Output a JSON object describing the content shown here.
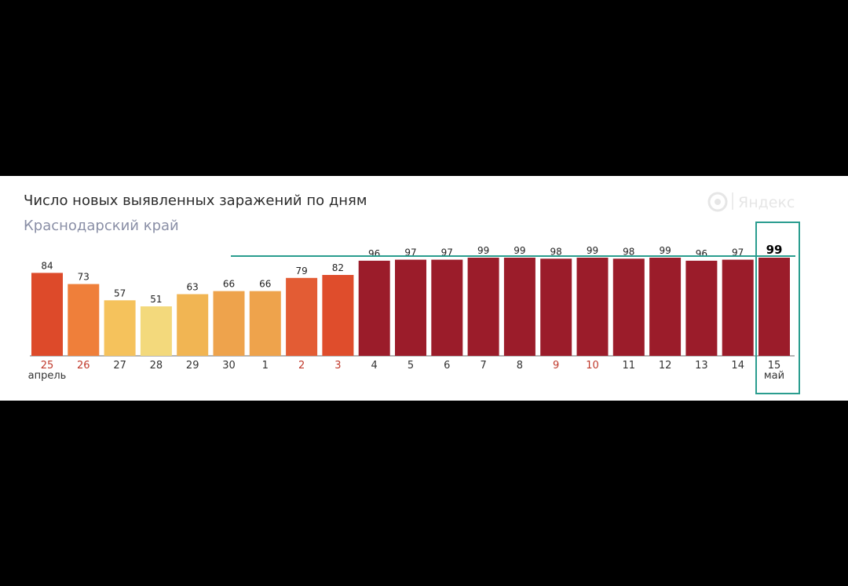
{
  "logo": {
    "text": "Яндекс"
  },
  "chart_data": {
    "type": "bar",
    "title": "Число новых выявленных заражений по дням",
    "subtitle": "Краснодарский край",
    "categories": [
      "25",
      "26",
      "27",
      "28",
      "29",
      "30",
      "1",
      "2",
      "3",
      "4",
      "5",
      "6",
      "7",
      "8",
      "9",
      "10",
      "11",
      "12",
      "13",
      "14",
      "15"
    ],
    "values": [
      84,
      73,
      57,
      51,
      63,
      66,
      66,
      79,
      82,
      96,
      97,
      97,
      99,
      99,
      98,
      99,
      98,
      99,
      96,
      97,
      99
    ],
    "colors": [
      "#dd4a2a",
      "#ef7f3a",
      "#f5c25c",
      "#f3d97c",
      "#f1b553",
      "#eea34c",
      "#eea34c",
      "#e35c34",
      "#df4d2c",
      "#9b1c2a",
      "#9b1c2a",
      "#9b1c2a",
      "#9b1c2a",
      "#9b1c2a",
      "#9b1c2a",
      "#9b1c2a",
      "#9b1c2a",
      "#9b1c2a",
      "#9b1c2a",
      "#9b1c2a",
      "#9b1c2a"
    ],
    "weekend_categories": [
      "25",
      "26",
      "2",
      "3",
      "9",
      "10"
    ],
    "month_labels": [
      {
        "text": "апрель",
        "category": "25"
      },
      {
        "text": "май",
        "category": "15"
      }
    ],
    "highlight": {
      "category": "15",
      "color": "#2a9d8f"
    },
    "reference_line": {
      "value": 99,
      "color": "#2a9d8f"
    },
    "ylim": [
      0,
      99
    ],
    "grid": false,
    "legend": "none"
  }
}
